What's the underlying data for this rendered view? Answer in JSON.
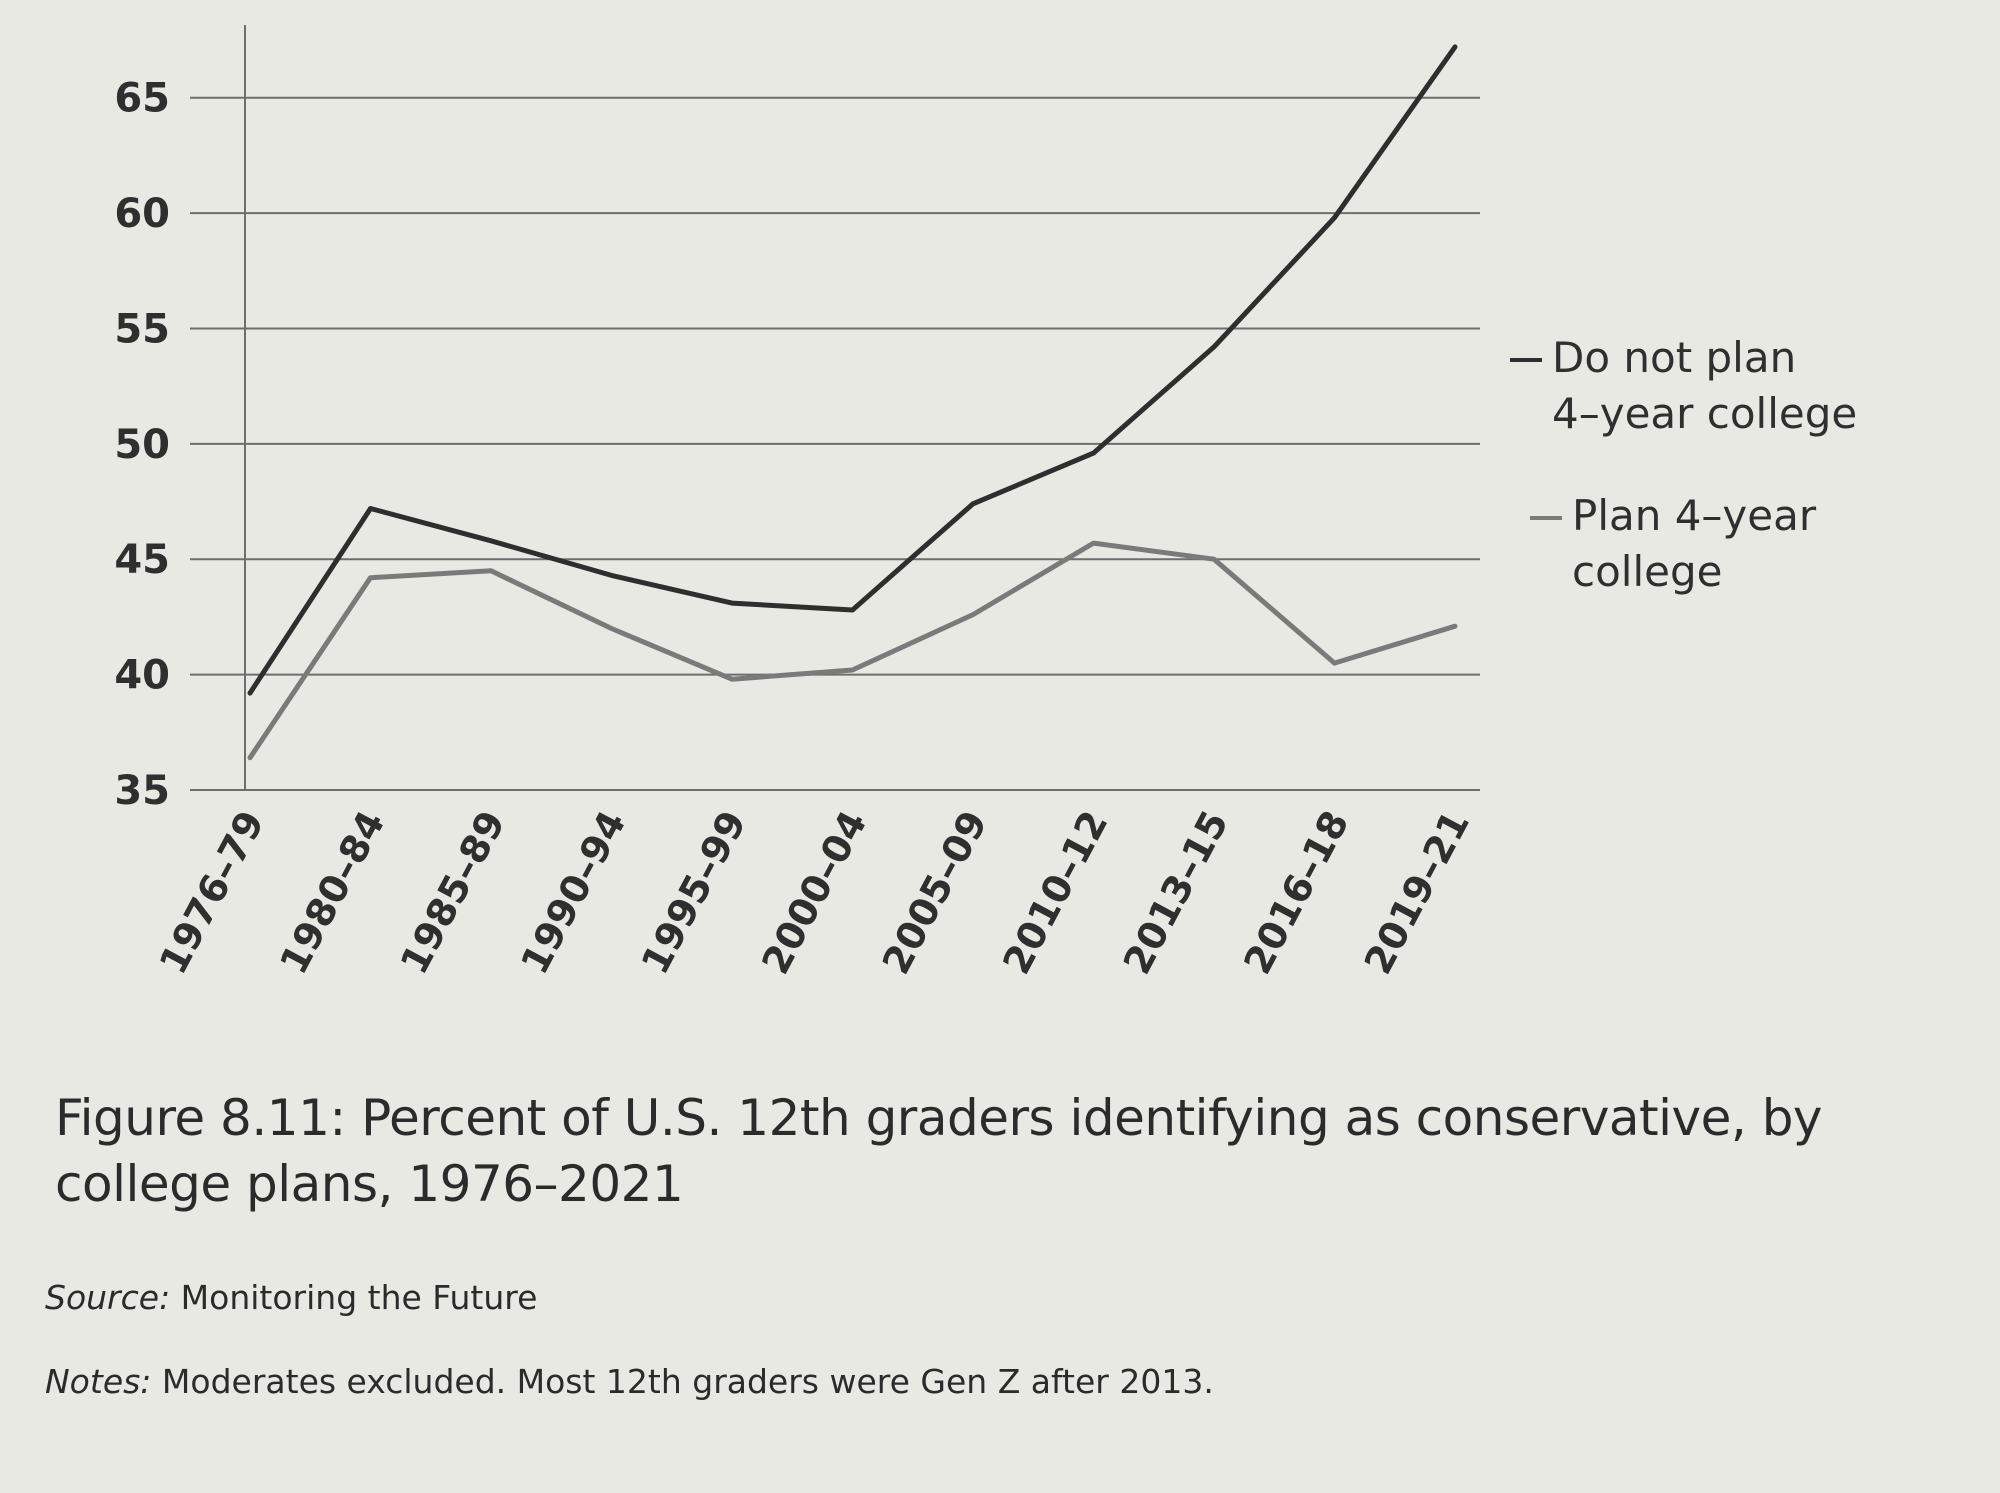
{
  "chart_data": {
    "type": "line",
    "categories": [
      "1976–79",
      "1980–84",
      "1985–89",
      "1990–94",
      "1995–99",
      "2000–04",
      "2005–09",
      "2010–12",
      "2013–15",
      "2016–18",
      "2019–21"
    ],
    "series": [
      {
        "name": "Do not plan 4-year college",
        "legend_lines": [
          "Do not plan",
          "4–year college"
        ],
        "color": "#2e2e2e",
        "values": [
          39.2,
          47.2,
          45.8,
          44.3,
          43.1,
          42.8,
          47.4,
          49.6,
          54.2,
          59.8,
          67.2
        ]
      },
      {
        "name": "Plan 4-year college",
        "legend_lines": [
          "Plan 4–year",
          "college"
        ],
        "color": "#7a7a7a",
        "values": [
          36.4,
          44.2,
          44.5,
          42.0,
          39.8,
          40.2,
          42.6,
          45.7,
          45.0,
          40.5,
          42.1
        ]
      }
    ],
    "yticks": [
      35,
      40,
      45,
      50,
      55,
      60,
      65
    ],
    "ylim": [
      35,
      67.5
    ],
    "grid": true,
    "legend_position": "right",
    "title": "Figure 8.11: Percent of U.S. 12th graders identifying as conservative, by college plans, 1976–2021",
    "xlabel": "",
    "ylabel": ""
  },
  "caption": {
    "figure": "Figure 8.11: Percent of U.S. 12th graders identifying as conservative, by college plans, 1976–2021",
    "source_label": "Source:",
    "source_text": " Monitoring the Future",
    "notes_label": "Notes:",
    "notes_text": " Moderates excluded. Most 12th graders were Gen Z after 2013."
  }
}
